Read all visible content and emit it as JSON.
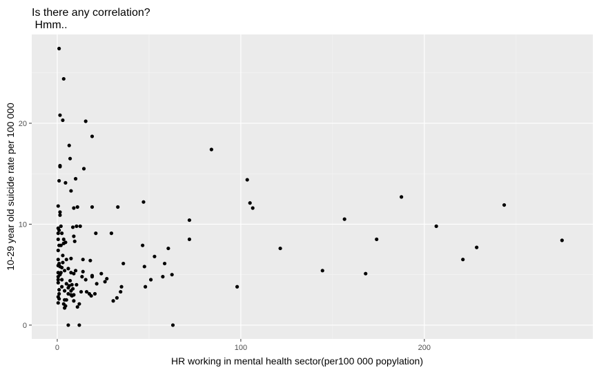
{
  "chart_data": {
    "type": "scatter",
    "title": "Is there any correlation?",
    "subtitle": " Hmm..",
    "xlabel": "HR working in mental health sector(per100 000 popylation)",
    "ylabel": "10-29 year old suicide rate per 100 000",
    "xlim": [
      -13.9,
      291.8
    ],
    "ylim": [
      -1.37,
      28.8
    ],
    "xticks": [
      0,
      100,
      200
    ],
    "yticks": [
      0,
      10,
      20
    ],
    "grid": true,
    "colors": {
      "panel": "#ebebeb",
      "grid_major": "#ffffff",
      "grid_minor": "#f5f5f5",
      "point": "#000000"
    },
    "points": [
      [
        1,
        27.4
      ],
      [
        3.5,
        24.4
      ],
      [
        1.5,
        20.8
      ],
      [
        3,
        20.3
      ],
      [
        15.5,
        20.2
      ],
      [
        19,
        18.7
      ],
      [
        6.5,
        17.8
      ],
      [
        84,
        17.4
      ],
      [
        7,
        16.5
      ],
      [
        1.5,
        15.7
      ],
      [
        1.5,
        15.8
      ],
      [
        14.5,
        15.5
      ],
      [
        1,
        14.3
      ],
      [
        10,
        14.5
      ],
      [
        4.5,
        14.1
      ],
      [
        103.5,
        14.4
      ],
      [
        7.5,
        13.3
      ],
      [
        105,
        12.1
      ],
      [
        187.5,
        12.7
      ],
      [
        47,
        12.2
      ],
      [
        106.5,
        11.6
      ],
      [
        243.5,
        11.9
      ],
      [
        0.5,
        11.8
      ],
      [
        9,
        11.6
      ],
      [
        11,
        11.7
      ],
      [
        19,
        11.7
      ],
      [
        33,
        11.7
      ],
      [
        1.5,
        11.2
      ],
      [
        1.5,
        10.9
      ],
      [
        72,
        10.4
      ],
      [
        156.5,
        10.5
      ],
      [
        2,
        9.8
      ],
      [
        0.5,
        9.6
      ],
      [
        8.5,
        9.7
      ],
      [
        10.5,
        9.8
      ],
      [
        12.5,
        9.8
      ],
      [
        206.5,
        9.8
      ],
      [
        1,
        9.4
      ],
      [
        0.5,
        9.1
      ],
      [
        2.5,
        9.1
      ],
      [
        21,
        9.1
      ],
      [
        29.5,
        9.1
      ],
      [
        9,
        8.8
      ],
      [
        0.5,
        8.5
      ],
      [
        3.5,
        8.5
      ],
      [
        9.5,
        8.3
      ],
      [
        72,
        8.5
      ],
      [
        174,
        8.5
      ],
      [
        275,
        8.4
      ],
      [
        1,
        7.9
      ],
      [
        2,
        7.9
      ],
      [
        3.5,
        8.1
      ],
      [
        4.5,
        8.2
      ],
      [
        46.5,
        7.9
      ],
      [
        60.5,
        7.6
      ],
      [
        121.5,
        7.6
      ],
      [
        228.5,
        7.7
      ],
      [
        0.5,
        7.4
      ],
      [
        3,
        6.9
      ],
      [
        0.5,
        6.5
      ],
      [
        5,
        6.5
      ],
      [
        7.5,
        6.6
      ],
      [
        14,
        6.5
      ],
      [
        18,
        6.4
      ],
      [
        53,
        6.8
      ],
      [
        221,
        6.5
      ],
      [
        1,
        6.1
      ],
      [
        3,
        6.2
      ],
      [
        36,
        6.1
      ],
      [
        58.5,
        6.1
      ],
      [
        0.5,
        5.9
      ],
      [
        1.5,
        5.8
      ],
      [
        2.5,
        5.7
      ],
      [
        47.5,
        5.8
      ],
      [
        4,
        5.4
      ],
      [
        6,
        5.6
      ],
      [
        10,
        5.4
      ],
      [
        0.5,
        5.2
      ],
      [
        2,
        5.2
      ],
      [
        7.5,
        5.2
      ],
      [
        14,
        5.3
      ],
      [
        1.5,
        5.0
      ],
      [
        9,
        5.1
      ],
      [
        19,
        4.9
      ],
      [
        24,
        5.1
      ],
      [
        62.5,
        5.0
      ],
      [
        144.5,
        5.4
      ],
      [
        168,
        5.1
      ],
      [
        0.5,
        4.8
      ],
      [
        13.5,
        4.8
      ],
      [
        19,
        4.8
      ],
      [
        0.5,
        4.5
      ],
      [
        2.5,
        4.5
      ],
      [
        7,
        4.4
      ],
      [
        15.5,
        4.5
      ],
      [
        27,
        4.6
      ],
      [
        51,
        4.5
      ],
      [
        57.5,
        4.8
      ],
      [
        0.5,
        4.2
      ],
      [
        5,
        4.1
      ],
      [
        6.5,
        3.9
      ],
      [
        8,
        4.0
      ],
      [
        10.5,
        4.0
      ],
      [
        21.5,
        4.1
      ],
      [
        26,
        4.3
      ],
      [
        2.5,
        3.8
      ],
      [
        6,
        3.7
      ],
      [
        8.5,
        3.6
      ],
      [
        35,
        3.8
      ],
      [
        48,
        3.8
      ],
      [
        98,
        3.8
      ],
      [
        1,
        3.5
      ],
      [
        4,
        3.4
      ],
      [
        7.5,
        3.4
      ],
      [
        13,
        3.3
      ],
      [
        16,
        3.3
      ],
      [
        34.5,
        3.3
      ],
      [
        1,
        3.1
      ],
      [
        6,
        3.1
      ],
      [
        7.5,
        3.0
      ],
      [
        9,
        3.0
      ],
      [
        17.5,
        3.1
      ],
      [
        20.5,
        3.1
      ],
      [
        0.5,
        2.8
      ],
      [
        8,
        2.9
      ],
      [
        18.5,
        2.9
      ],
      [
        1,
        2.6
      ],
      [
        4,
        2.5
      ],
      [
        5,
        2.5
      ],
      [
        9,
        2.4
      ],
      [
        30.5,
        2.4
      ],
      [
        32.5,
        2.7
      ],
      [
        0.5,
        2.2
      ],
      [
        3.5,
        2.1
      ],
      [
        12,
        2.1
      ],
      [
        4.5,
        1.9
      ],
      [
        11,
        1.8
      ],
      [
        4,
        1.7
      ],
      [
        6,
        0.0
      ],
      [
        12,
        0.0
      ],
      [
        63,
        0.0
      ]
    ]
  }
}
